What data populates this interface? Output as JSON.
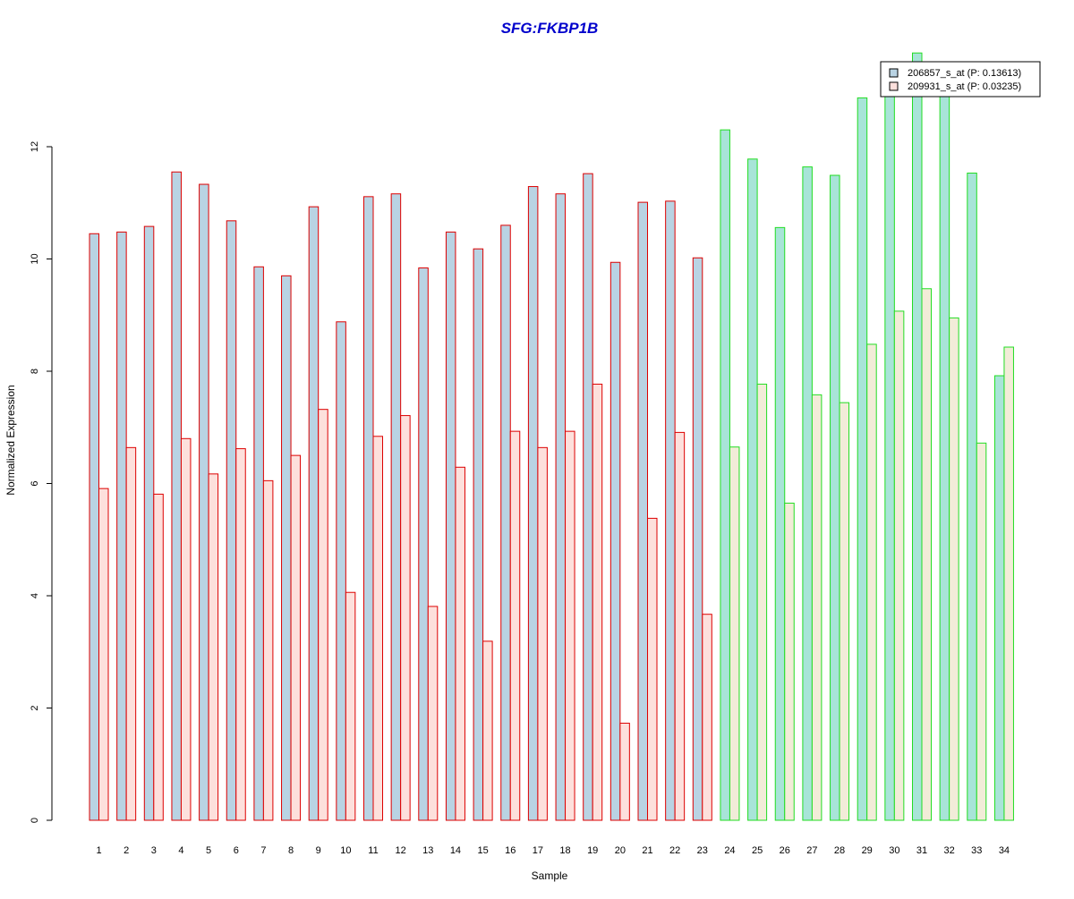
{
  "chart_data": {
    "type": "bar",
    "title": "SFG:FKBP1B",
    "xlabel": "Sample",
    "ylabel": "Normalized Expression",
    "ylim": [
      0,
      13.6
    ],
    "yticks": [
      0,
      2,
      4,
      6,
      8,
      10,
      12
    ],
    "categories": [
      "1",
      "2",
      "3",
      "4",
      "5",
      "6",
      "7",
      "8",
      "9",
      "10",
      "11",
      "12",
      "13",
      "14",
      "15",
      "16",
      "17",
      "18",
      "19",
      "20",
      "21",
      "22",
      "23",
      "24",
      "25",
      "26",
      "27",
      "28",
      "29",
      "30",
      "31",
      "32",
      "33",
      "34"
    ],
    "series": [
      {
        "name": "206857_s_at (P: 0.13613)",
        "values": [
          10.45,
          10.48,
          10.58,
          11.55,
          11.33,
          10.68,
          9.86,
          9.7,
          10.93,
          8.88,
          11.11,
          11.16,
          9.84,
          10.48,
          10.18,
          10.6,
          11.29,
          11.16,
          11.52,
          9.94,
          11.01,
          11.03,
          10.02,
          12.3,
          11.78,
          10.56,
          11.64,
          11.49,
          12.87,
          13.24,
          13.67,
          13.41,
          11.53,
          7.92
        ]
      },
      {
        "name": "209931_s_at (P: 0.03235)",
        "values": [
          5.91,
          6.64,
          5.81,
          6.8,
          6.17,
          6.62,
          6.05,
          6.5,
          7.32,
          4.06,
          6.84,
          7.21,
          3.81,
          6.29,
          3.19,
          6.93,
          6.64,
          6.93,
          7.77,
          1.73,
          5.38,
          6.91,
          3.67,
          6.65,
          7.77,
          5.65,
          7.58,
          7.44,
          8.48,
          9.07,
          9.47,
          8.95,
          6.72,
          8.43
        ]
      }
    ],
    "group_split_after": 23,
    "colors": {
      "title": "#0000cc",
      "series1_fill_group1": "#b9d3e3",
      "series2_fill_group1": "#fde0dc",
      "series1_fill_group2": "#a8e4d8",
      "series2_fill_group2": "#f2ecd8",
      "border_group1": "#dd0000",
      "border_group2": "#22dd22"
    },
    "legend_position": "top-right"
  }
}
